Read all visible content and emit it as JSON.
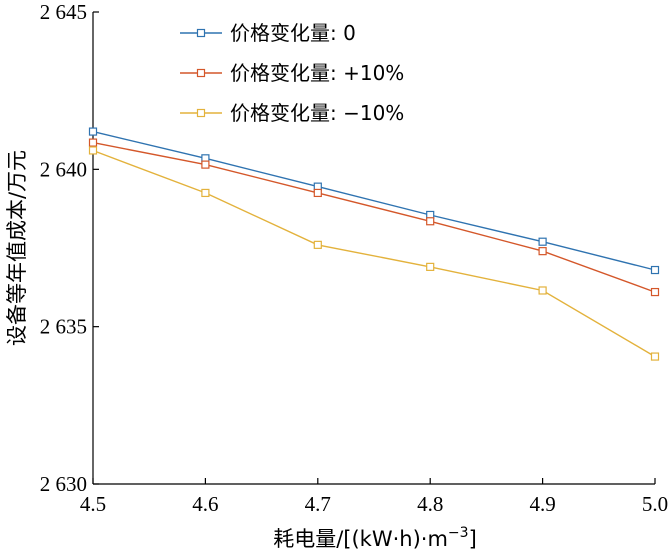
{
  "chart_data": {
    "type": "line",
    "xlabel": "耗电量/[(kW·h)·m",
    "xlabel_sup": "−3",
    "xlabel_close": "]",
    "ylabel": "设备等年值成本/万元",
    "x": [
      4.5,
      4.6,
      4.7,
      4.8,
      4.9,
      5.0
    ],
    "x_tick_labels": [
      "4.5",
      "4.6",
      "4.7",
      "4.8",
      "4.9",
      "5.0"
    ],
    "xlim": [
      4.5,
      5.0
    ],
    "ylim": [
      2630,
      2645
    ],
    "y_ticks": [
      2630,
      2635,
      2640,
      2645
    ],
    "y_tick_labels": [
      "2 630",
      "2 635",
      "2 640",
      "2 645"
    ],
    "grid": false,
    "legend_position": "top-left",
    "series": [
      {
        "name": "价格变化量: 0",
        "color": "#2f73b0",
        "values": [
          2641.2,
          2640.35,
          2639.45,
          2638.55,
          2637.7,
          2636.8
        ]
      },
      {
        "name": "价格变化量: +10%",
        "color": "#d4572a",
        "values": [
          2640.85,
          2640.15,
          2639.25,
          2638.35,
          2637.4,
          2636.1
        ]
      },
      {
        "name": "价格变化量: −10%",
        "color": "#e3b23c",
        "values": [
          2640.6,
          2639.25,
          2637.6,
          2636.9,
          2636.15,
          2634.05
        ]
      }
    ]
  }
}
